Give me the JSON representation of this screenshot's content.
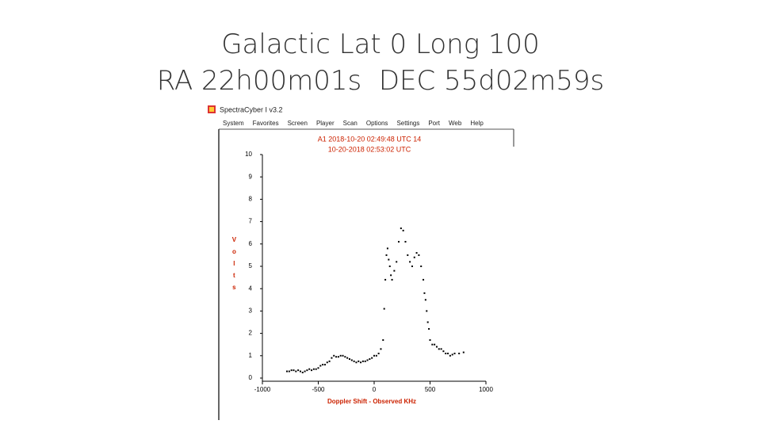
{
  "slide": {
    "title_lines": [
      "Galactic Lat 0 Long 100",
      "RA 22h00m01s  DEC 55d02m59s"
    ]
  },
  "window": {
    "title": "SpectraCyber I v3.2",
    "menu": [
      "System",
      "Favorites",
      "Screen",
      "Player",
      "Scan",
      "Options",
      "Settings",
      "Port",
      "Web",
      "Help"
    ]
  },
  "chart_data": {
    "type": "scatter",
    "annotations": [
      "A1 2018-10-20 02:49:48 UTC 14",
      "10-20-2018 02:53:02 UTC"
    ],
    "xlabel": "Doppler Shift - Observed KHz",
    "ylabel": "Volts",
    "color": "#000000",
    "text_color": "#cc2200",
    "xlim": [
      -1000,
      1000
    ],
    "xticks": [
      -1000,
      -500,
      0,
      500,
      1000
    ],
    "ylim": [
      0,
      10
    ],
    "yticks": [
      0,
      1,
      2,
      3,
      4,
      5,
      6,
      7,
      8,
      9,
      10
    ],
    "grid": false,
    "x": [
      -780,
      -760,
      -740,
      -720,
      -700,
      -680,
      -660,
      -640,
      -620,
      -600,
      -580,
      -560,
      -540,
      -520,
      -500,
      -480,
      -460,
      -440,
      -420,
      -400,
      -380,
      -360,
      -340,
      -320,
      -300,
      -280,
      -260,
      -240,
      -220,
      -200,
      -180,
      -160,
      -140,
      -120,
      -100,
      -80,
      -60,
      -40,
      -20,
      0,
      20,
      40,
      60,
      80,
      90,
      100,
      110,
      120,
      130,
      140,
      150,
      160,
      180,
      200,
      220,
      240,
      260,
      280,
      300,
      320,
      340,
      360,
      380,
      400,
      420,
      440,
      450,
      460,
      470,
      480,
      490,
      500,
      520,
      540,
      560,
      580,
      600,
      620,
      640,
      660,
      680,
      700,
      720,
      760,
      800
    ],
    "values": [
      0.3,
      0.3,
      0.35,
      0.35,
      0.3,
      0.35,
      0.3,
      0.25,
      0.3,
      0.35,
      0.4,
      0.35,
      0.4,
      0.4,
      0.45,
      0.55,
      0.6,
      0.6,
      0.7,
      0.75,
      0.9,
      1.0,
      0.95,
      0.95,
      1.0,
      1.0,
      0.95,
      0.9,
      0.85,
      0.8,
      0.75,
      0.7,
      0.75,
      0.7,
      0.75,
      0.75,
      0.8,
      0.85,
      0.9,
      1.0,
      1.0,
      1.1,
      1.3,
      1.7,
      3.1,
      4.4,
      5.5,
      5.8,
      5.3,
      5.0,
      4.6,
      4.4,
      4.8,
      5.2,
      6.1,
      6.7,
      6.6,
      6.1,
      5.5,
      5.2,
      5.0,
      5.4,
      5.6,
      5.5,
      5.0,
      4.4,
      3.8,
      3.5,
      3.0,
      2.5,
      2.2,
      1.7,
      1.5,
      1.5,
      1.4,
      1.3,
      1.3,
      1.2,
      1.1,
      1.1,
      1.0,
      1.05,
      1.1,
      1.1,
      1.15
    ]
  }
}
